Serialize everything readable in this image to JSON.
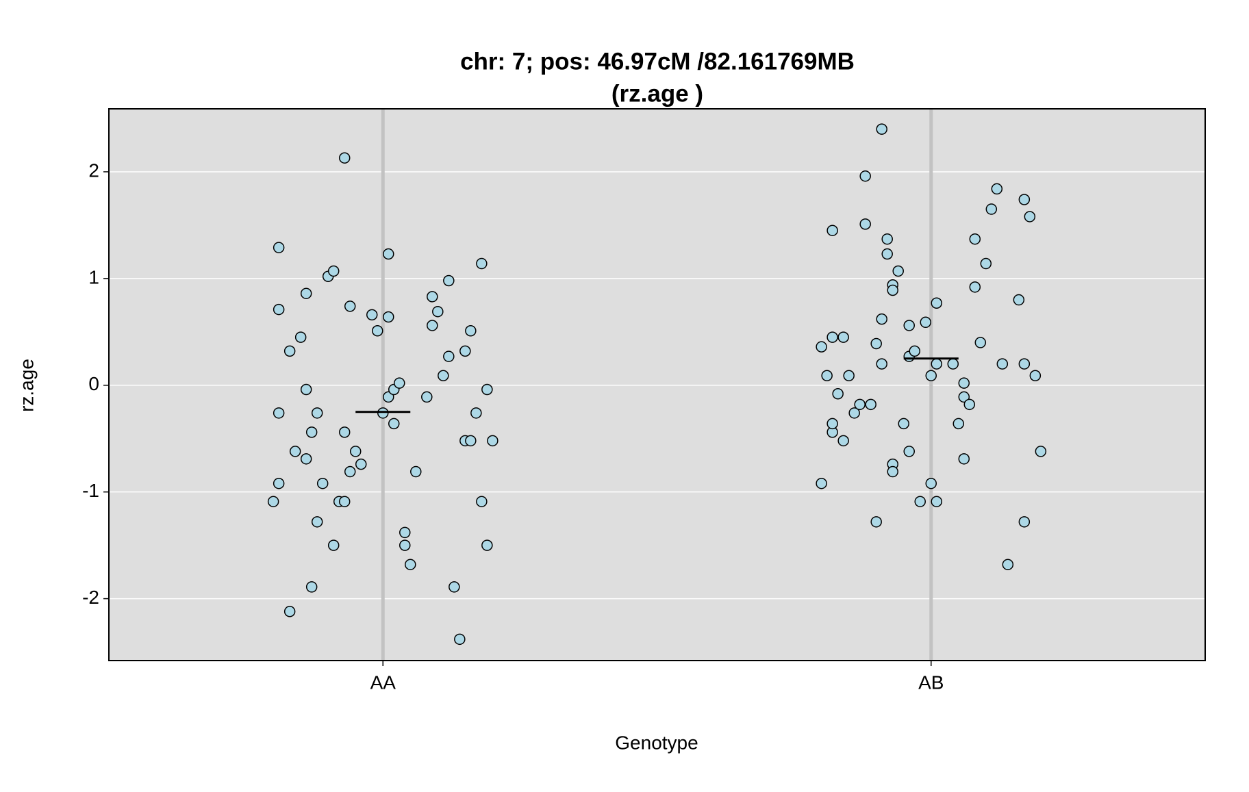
{
  "chart_data": {
    "type": "scatter",
    "title": [
      "chr: 7; pos: 46.97cM /82.161769MB",
      "(rz.age )"
    ],
    "xlabel": "Genotype",
    "ylabel": "rz.age",
    "xlim": [
      0.5,
      2.5
    ],
    "ylim": [
      -2.58,
      2.59
    ],
    "xticks": [
      {
        "value": 1,
        "label": "AA"
      },
      {
        "value": 2,
        "label": "AB"
      }
    ],
    "yticks": [
      -2,
      -1,
      0,
      1,
      2
    ],
    "grid": true,
    "background": "#dedede",
    "grid_color": "#ffffff",
    "category_line_color": "#c2c2c2",
    "series": [
      {
        "color": "#add8e6",
        "x": [
          0.81,
          0.81,
          0.83,
          0.81,
          0.81,
          0.8,
          0.83,
          0.84,
          0.85,
          0.86,
          0.86,
          0.86,
          0.87,
          0.87,
          0.88,
          0.88,
          0.89,
          0.9,
          0.91,
          0.91,
          0.92,
          0.93,
          0.93,
          0.93,
          0.94,
          0.94,
          0.95,
          0.96,
          0.98,
          0.99,
          1.0,
          1.01,
          1.01,
          1.01,
          1.02,
          1.02,
          1.03,
          1.04,
          1.04,
          1.05,
          1.06,
          1.08,
          1.09,
          1.1,
          1.09,
          1.11,
          1.12,
          1.12,
          1.13,
          1.14,
          1.15,
          1.15,
          1.16,
          1.16,
          1.17,
          1.18,
          1.18,
          1.19,
          1.19,
          1.2
        ],
        "values": [
          1.29,
          0.71,
          0.32,
          -0.26,
          -0.92,
          -1.09,
          -2.12,
          -0.62,
          0.45,
          -0.04,
          0.86,
          -0.69,
          -0.44,
          -1.89,
          -1.28,
          -0.26,
          -0.92,
          1.02,
          1.07,
          -1.5,
          -1.09,
          2.13,
          -1.09,
          -0.44,
          0.74,
          -0.81,
          -0.62,
          -0.74,
          0.66,
          0.51,
          -0.26,
          0.64,
          1.23,
          -0.11,
          -0.36,
          -0.04,
          0.02,
          -1.38,
          -1.5,
          -1.68,
          -0.81,
          -0.11,
          0.83,
          0.69,
          0.56,
          0.09,
          0.27,
          0.98,
          -1.89,
          -2.38,
          0.32,
          -0.52,
          -0.52,
          0.51,
          -0.26,
          1.14,
          -1.09,
          -0.04,
          -1.5,
          -0.52
        ]
      },
      {
        "color": "#add8e6",
        "x": [
          1.8,
          1.8,
          1.81,
          1.82,
          1.82,
          1.82,
          1.82,
          1.83,
          1.84,
          1.84,
          1.85,
          1.86,
          1.87,
          1.88,
          1.88,
          1.89,
          1.9,
          1.9,
          1.91,
          1.91,
          1.91,
          1.92,
          1.92,
          1.93,
          1.93,
          1.93,
          1.93,
          1.94,
          1.95,
          1.96,
          1.96,
          1.96,
          1.97,
          1.98,
          1.99,
          2.0,
          2.0,
          2.01,
          2.01,
          2.01,
          2.04,
          2.05,
          2.06,
          2.06,
          2.06,
          2.07,
          2.08,
          2.08,
          2.09,
          2.1,
          2.11,
          2.12,
          2.13,
          2.14,
          2.16,
          2.17,
          2.17,
          2.17,
          2.18,
          2.19,
          2.2
        ],
        "values": [
          0.36,
          -0.92,
          0.09,
          -0.44,
          -0.36,
          1.45,
          0.45,
          -0.08,
          -0.52,
          0.45,
          0.09,
          -0.26,
          -0.18,
          1.96,
          1.51,
          -0.18,
          -1.28,
          0.39,
          0.62,
          0.2,
          2.4,
          1.37,
          1.23,
          -0.74,
          -0.81,
          0.94,
          0.89,
          1.07,
          -0.36,
          0.56,
          -0.62,
          0.27,
          0.32,
          -1.09,
          0.59,
          -0.92,
          0.09,
          0.2,
          0.77,
          -1.09,
          0.2,
          -0.36,
          -0.69,
          0.02,
          -0.11,
          -0.18,
          1.37,
          0.92,
          0.4,
          1.14,
          1.65,
          1.84,
          0.2,
          -1.68,
          0.8,
          0.2,
          -1.28,
          1.74,
          1.58,
          0.09,
          -0.62
        ]
      }
    ],
    "means": [
      -0.25,
      0.25
    ]
  }
}
